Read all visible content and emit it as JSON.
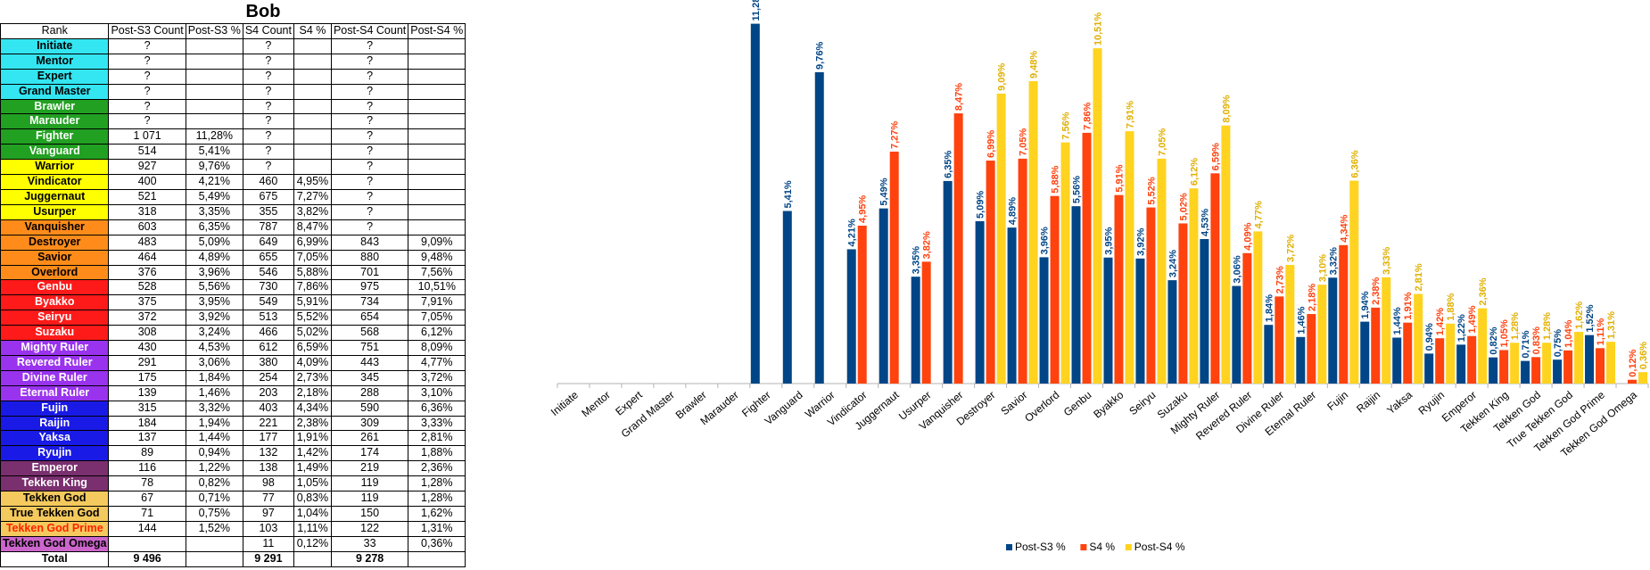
{
  "title": "Bob",
  "table": {
    "headers": [
      "Rank",
      "Post-S3 Count",
      "Post-S3 %",
      "S4 Count",
      "S4 %",
      "Post-S4 Count",
      "Post-S4 %"
    ],
    "rows": [
      {
        "rank": "Initiate",
        "c3": "?",
        "p3": "",
        "c4": "?",
        "p4": "",
        "c5": "?",
        "p5": "",
        "bg": "#33e6f2",
        "fg": "#000000"
      },
      {
        "rank": "Mentor",
        "c3": "?",
        "p3": "",
        "c4": "?",
        "p4": "",
        "c5": "?",
        "p5": "",
        "bg": "#33e6f2",
        "fg": "#000000"
      },
      {
        "rank": "Expert",
        "c3": "?",
        "p3": "",
        "c4": "?",
        "p4": "",
        "c5": "?",
        "p5": "",
        "bg": "#33e6f2",
        "fg": "#000000"
      },
      {
        "rank": "Grand Master",
        "c3": "?",
        "p3": "",
        "c4": "?",
        "p4": "",
        "c5": "?",
        "p5": "",
        "bg": "#33e6f2",
        "fg": "#000000"
      },
      {
        "rank": "Brawler",
        "c3": "?",
        "p3": "",
        "c4": "?",
        "p4": "",
        "c5": "?",
        "p5": "",
        "bg": "#22a022",
        "fg": "#ffffff"
      },
      {
        "rank": "Marauder",
        "c3": "?",
        "p3": "",
        "c4": "?",
        "p4": "",
        "c5": "?",
        "p5": "",
        "bg": "#22a022",
        "fg": "#ffffff"
      },
      {
        "rank": "Fighter",
        "c3": "1 071",
        "p3": "11,28%",
        "c4": "?",
        "p4": "",
        "c5": "?",
        "p5": "",
        "bg": "#22a022",
        "fg": "#ffffff"
      },
      {
        "rank": "Vanguard",
        "c3": "514",
        "p3": "5,41%",
        "c4": "?",
        "p4": "",
        "c5": "?",
        "p5": "",
        "bg": "#22a022",
        "fg": "#ffffff"
      },
      {
        "rank": "Warrior",
        "c3": "927",
        "p3": "9,76%",
        "c4": "?",
        "p4": "",
        "c5": "?",
        "p5": "",
        "bg": "#ffff00",
        "fg": "#000000"
      },
      {
        "rank": "Vindicator",
        "c3": "400",
        "p3": "4,21%",
        "c4": "460",
        "p4": "4,95%",
        "c5": "?",
        "p5": "",
        "bg": "#ffff00",
        "fg": "#000000"
      },
      {
        "rank": "Juggernaut",
        "c3": "521",
        "p3": "5,49%",
        "c4": "675",
        "p4": "7,27%",
        "c5": "?",
        "p5": "",
        "bg": "#ffff00",
        "fg": "#000000"
      },
      {
        "rank": "Usurper",
        "c3": "318",
        "p3": "3,35%",
        "c4": "355",
        "p4": "3,82%",
        "c5": "?",
        "p5": "",
        "bg": "#ffff00",
        "fg": "#000000"
      },
      {
        "rank": "Vanquisher",
        "c3": "603",
        "p3": "6,35%",
        "c4": "787",
        "p4": "8,47%",
        "c5": "?",
        "p5": "",
        "bg": "#ff8c1a",
        "fg": "#000000"
      },
      {
        "rank": "Destroyer",
        "c3": "483",
        "p3": "5,09%",
        "c4": "649",
        "p4": "6,99%",
        "c5": "843",
        "p5": "9,09%",
        "bg": "#ff8c1a",
        "fg": "#000000"
      },
      {
        "rank": "Savior",
        "c3": "464",
        "p3": "4,89%",
        "c4": "655",
        "p4": "7,05%",
        "c5": "880",
        "p5": "9,48%",
        "bg": "#ff8c1a",
        "fg": "#000000"
      },
      {
        "rank": "Overlord",
        "c3": "376",
        "p3": "3,96%",
        "c4": "546",
        "p4": "5,88%",
        "c5": "701",
        "p5": "7,56%",
        "bg": "#ff8c1a",
        "fg": "#000000"
      },
      {
        "rank": "Genbu",
        "c3": "528",
        "p3": "5,56%",
        "c4": "730",
        "p4": "7,86%",
        "c5": "975",
        "p5": "10,51%",
        "bg": "#ff1a1a",
        "fg": "#ffffff"
      },
      {
        "rank": "Byakko",
        "c3": "375",
        "p3": "3,95%",
        "c4": "549",
        "p4": "5,91%",
        "c5": "734",
        "p5": "7,91%",
        "bg": "#ff1a1a",
        "fg": "#ffffff"
      },
      {
        "rank": "Seiryu",
        "c3": "372",
        "p3": "3,92%",
        "c4": "513",
        "p4": "5,52%",
        "c5": "654",
        "p5": "7,05%",
        "bg": "#ff1a1a",
        "fg": "#ffffff"
      },
      {
        "rank": "Suzaku",
        "c3": "308",
        "p3": "3,24%",
        "c4": "466",
        "p4": "5,02%",
        "c5": "568",
        "p5": "6,12%",
        "bg": "#ff1a1a",
        "fg": "#ffffff"
      },
      {
        "rank": "Mighty Ruler",
        "c3": "430",
        "p3": "4,53%",
        "c4": "612",
        "p4": "6,59%",
        "c5": "751",
        "p5": "8,09%",
        "bg": "#9933ee",
        "fg": "#ffffff"
      },
      {
        "rank": "Revered Ruler",
        "c3": "291",
        "p3": "3,06%",
        "c4": "380",
        "p4": "4,09%",
        "c5": "443",
        "p5": "4,77%",
        "bg": "#9933ee",
        "fg": "#ffffff"
      },
      {
        "rank": "Divine Ruler",
        "c3": "175",
        "p3": "1,84%",
        "c4": "254",
        "p4": "2,73%",
        "c5": "345",
        "p5": "3,72%",
        "bg": "#9933ee",
        "fg": "#ffffff"
      },
      {
        "rank": "Eternal Ruler",
        "c3": "139",
        "p3": "1,46%",
        "c4": "203",
        "p4": "2,18%",
        "c5": "288",
        "p5": "3,10%",
        "bg": "#9933ee",
        "fg": "#ffffff"
      },
      {
        "rank": "Fujin",
        "c3": "315",
        "p3": "3,32%",
        "c4": "403",
        "p4": "4,34%",
        "c5": "590",
        "p5": "6,36%",
        "bg": "#1a1ae6",
        "fg": "#ffffff"
      },
      {
        "rank": "Raijin",
        "c3": "184",
        "p3": "1,94%",
        "c4": "221",
        "p4": "2,38%",
        "c5": "309",
        "p5": "3,33%",
        "bg": "#1a1ae6",
        "fg": "#ffffff"
      },
      {
        "rank": "Yaksa",
        "c3": "137",
        "p3": "1,44%",
        "c4": "177",
        "p4": "1,91%",
        "c5": "261",
        "p5": "2,81%",
        "bg": "#1a1ae6",
        "fg": "#ffffff"
      },
      {
        "rank": "Ryujin",
        "c3": "89",
        "p3": "0,94%",
        "c4": "132",
        "p4": "1,42%",
        "c5": "174",
        "p5": "1,88%",
        "bg": "#1a1ae6",
        "fg": "#ffffff"
      },
      {
        "rank": "Emperor",
        "c3": "116",
        "p3": "1,22%",
        "c4": "138",
        "p4": "1,49%",
        "c5": "219",
        "p5": "2,36%",
        "bg": "#7a2f6e",
        "fg": "#ffffff"
      },
      {
        "rank": "Tekken King",
        "c3": "78",
        "p3": "0,82%",
        "c4": "98",
        "p4": "1,05%",
        "c5": "119",
        "p5": "1,28%",
        "bg": "#7a2f6e",
        "fg": "#ffffff"
      },
      {
        "rank": "Tekken God",
        "c3": "67",
        "p3": "0,71%",
        "c4": "77",
        "p4": "0,83%",
        "c5": "119",
        "p5": "1,28%",
        "bg": "#f4c95d",
        "fg": "#000000"
      },
      {
        "rank": "True Tekken God",
        "c3": "71",
        "p3": "0,75%",
        "c4": "97",
        "p4": "1,04%",
        "c5": "150",
        "p5": "1,62%",
        "bg": "#f4c95d",
        "fg": "#000000"
      },
      {
        "rank": "Tekken God Prime",
        "c3": "144",
        "p3": "1,52%",
        "c4": "103",
        "p4": "1,11%",
        "c5": "122",
        "p5": "1,31%",
        "bg": "#f4c95d",
        "fg": "#ff2200"
      },
      {
        "rank": "Tekken God Omega",
        "c3": "",
        "p3": "",
        "c4": "11",
        "p4": "0,12%",
        "c5": "33",
        "p5": "0,36%",
        "bg": "#cc66cc",
        "fg": "#000000"
      }
    ],
    "total": {
      "rank": "Total",
      "c3": "9 496",
      "p3": "",
      "c4": "9 291",
      "p4": "",
      "c5": "9 278",
      "p5": ""
    }
  },
  "chart_data": {
    "type": "bar",
    "categories": [
      "Initiate",
      "Mentor",
      "Expert",
      "Grand Master",
      "Brawler",
      "Marauder",
      "Fighter",
      "Vanguard",
      "Warrior",
      "Vindicator",
      "Juggernaut",
      "Usurper",
      "Vanquisher",
      "Destroyer",
      "Savior",
      "Overlord",
      "Genbu",
      "Byakko",
      "Seiryu",
      "Suzaku",
      "Mighty Ruler",
      "Revered Ruler",
      "Divine Ruler",
      "Eternal Ruler",
      "Fujin",
      "Raijin",
      "Yaksa",
      "Ryujin",
      "Emperor",
      "Tekken King",
      "Tekken God",
      "True Tekken God",
      "Tekken God Prime",
      "Tekken God Omega"
    ],
    "series": [
      {
        "name": "Post-S3 %",
        "color": "#004586",
        "values": [
          null,
          null,
          null,
          null,
          null,
          null,
          11.28,
          5.41,
          9.76,
          4.21,
          5.49,
          3.35,
          6.35,
          5.09,
          4.89,
          3.96,
          5.56,
          3.95,
          3.92,
          3.24,
          4.53,
          3.06,
          1.84,
          1.46,
          3.32,
          1.94,
          1.44,
          0.94,
          1.22,
          0.82,
          0.71,
          0.75,
          1.52,
          null
        ],
        "labels": [
          "",
          "",
          "",
          "",
          "",
          "",
          "11,28%",
          "5,41%",
          "9,76%",
          "4,21%",
          "5,49%",
          "3,35%",
          "6,35%",
          "5,09%",
          "4,89%",
          "3,96%",
          "5,56%",
          "3,95%",
          "3,92%",
          "3,24%",
          "4,53%",
          "3,06%",
          "1,84%",
          "1,46%",
          "3,32%",
          "1,94%",
          "1,44%",
          "0,94%",
          "1,22%",
          "0,82%",
          "0,71%",
          "0,75%",
          "1,52%",
          ""
        ]
      },
      {
        "name": "S4 %",
        "color": "#ff420e",
        "values": [
          null,
          null,
          null,
          null,
          null,
          null,
          null,
          null,
          null,
          4.95,
          7.27,
          3.82,
          8.47,
          6.99,
          7.05,
          5.88,
          7.86,
          5.91,
          5.52,
          5.02,
          6.59,
          4.09,
          2.73,
          2.18,
          4.34,
          2.38,
          1.91,
          1.42,
          1.49,
          1.05,
          0.83,
          1.04,
          1.11,
          0.12
        ],
        "labels": [
          "",
          "",
          "",
          "",
          "",
          "",
          "",
          "",
          "",
          "4,95%",
          "7,27%",
          "3,82%",
          "8,47%",
          "6,99%",
          "7,05%",
          "5,88%",
          "7,86%",
          "5,91%",
          "5,52%",
          "5,02%",
          "6,59%",
          "4,09%",
          "2,73%",
          "2,18%",
          "4,34%",
          "2,38%",
          "1,91%",
          "1,42%",
          "1,49%",
          "1,05%",
          "0,83%",
          "1,04%",
          "1,11%",
          "0,12%"
        ]
      },
      {
        "name": "Post-S4 %",
        "color": "#ffd320",
        "values": [
          null,
          null,
          null,
          null,
          null,
          null,
          null,
          null,
          null,
          null,
          null,
          null,
          null,
          9.09,
          9.48,
          7.56,
          10.51,
          7.91,
          7.05,
          6.12,
          8.09,
          4.77,
          3.72,
          3.1,
          6.36,
          3.33,
          2.81,
          1.88,
          2.36,
          1.28,
          1.28,
          1.62,
          1.31,
          0.36
        ],
        "labels": [
          "",
          "",
          "",
          "",
          "",
          "",
          "",
          "",
          "",
          "",
          "",
          "",
          "",
          "9,09%",
          "9,48%",
          "7,56%",
          "10,51%",
          "7,91%",
          "7,05%",
          "6,12%",
          "8,09%",
          "4,77%",
          "3,72%",
          "3,10%",
          "6,36%",
          "3,33%",
          "2,81%",
          "1,88%",
          "2,36%",
          "1,28%",
          "1,28%",
          "1,62%",
          "1,31%",
          "0,36%"
        ]
      }
    ],
    "ylim": [
      0,
      11.8
    ],
    "legend": "bottom",
    "grid": false
  }
}
